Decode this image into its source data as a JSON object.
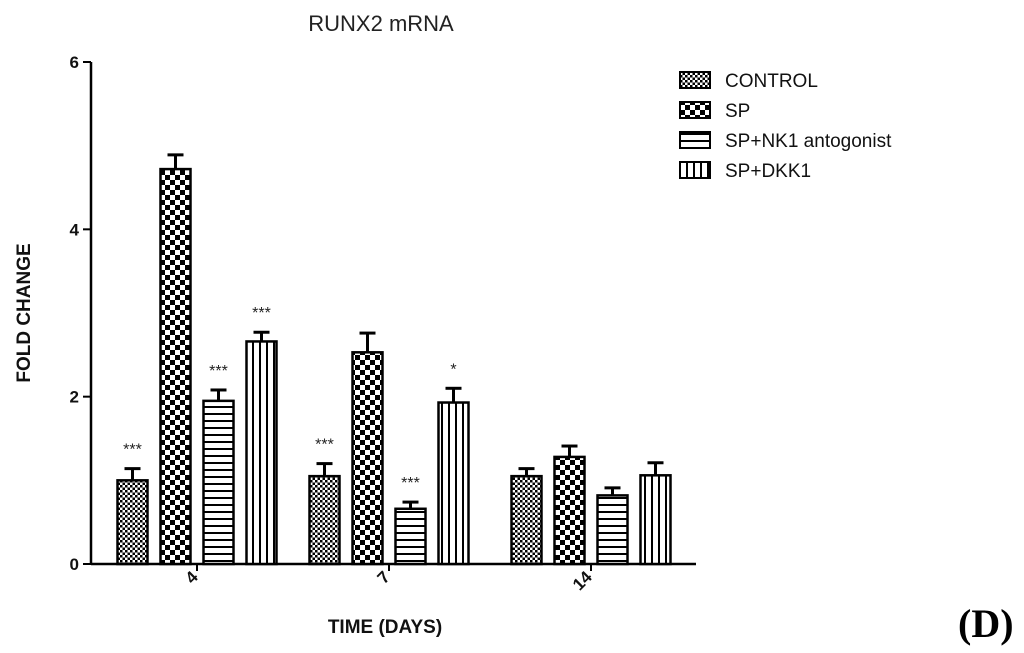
{
  "chart_data": {
    "type": "bar",
    "title": "RUNX2 mRNA",
    "xlabel": "TIME (DAYS)",
    "ylabel": "FOLD CHANGE",
    "ylim": [
      0,
      6
    ],
    "yticks": [
      "0",
      "2",
      "4",
      "6"
    ],
    "categories": [
      "4",
      "7",
      "14"
    ],
    "legend_position": "top-right",
    "series": [
      {
        "name": "CONTROL",
        "pattern": "checker-small",
        "values": [
          1.0,
          1.05,
          1.05
        ],
        "errors": [
          0.14,
          0.15,
          0.09
        ],
        "significance": [
          "***",
          "***",
          ""
        ]
      },
      {
        "name": "SP",
        "pattern": "checker-large",
        "values": [
          4.72,
          2.53,
          1.28
        ],
        "errors": [
          0.17,
          0.23,
          0.13
        ],
        "significance": [
          "",
          "",
          ""
        ]
      },
      {
        "name": "SP+NK1 antogonist",
        "pattern": "horizontal-stripes",
        "values": [
          1.95,
          0.66,
          0.82
        ],
        "errors": [
          0.13,
          0.08,
          0.09
        ],
        "significance": [
          "***",
          "***",
          ""
        ]
      },
      {
        "name": "SP+DKK1",
        "pattern": "vertical-stripes",
        "values": [
          2.66,
          1.93,
          1.06
        ],
        "errors": [
          0.11,
          0.17,
          0.15
        ],
        "significance": [
          "***",
          "*",
          ""
        ]
      }
    ],
    "colors": {
      "bar_fill": "#ffffff",
      "bar_ink": "#000000",
      "axis": "#000000"
    }
  },
  "panel_label": "(D)"
}
